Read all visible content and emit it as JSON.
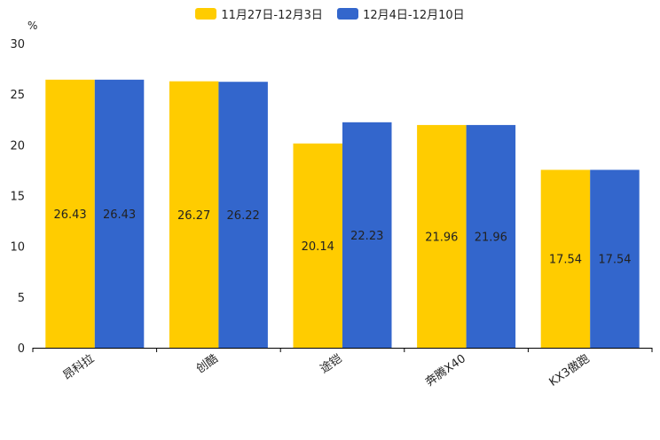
{
  "chart_data": {
    "type": "bar",
    "unit_label": "%",
    "categories": [
      "昂科拉",
      "创酷",
      "途铠",
      "奔腾X40",
      "KX3傲跑"
    ],
    "series": [
      {
        "name": "11月27日-12月3日",
        "color": "#FFCC00",
        "values": [
          26.43,
          26.27,
          20.14,
          21.96,
          17.54
        ]
      },
      {
        "name": "12月4日-12月10日",
        "color": "#3366CC",
        "values": [
          26.43,
          26.22,
          22.23,
          21.96,
          17.54
        ]
      }
    ],
    "ylim": [
      0,
      30
    ],
    "yticks": [
      0,
      5,
      10,
      15,
      20,
      25,
      30
    ],
    "legend_position": "top-center",
    "grid": false
  }
}
